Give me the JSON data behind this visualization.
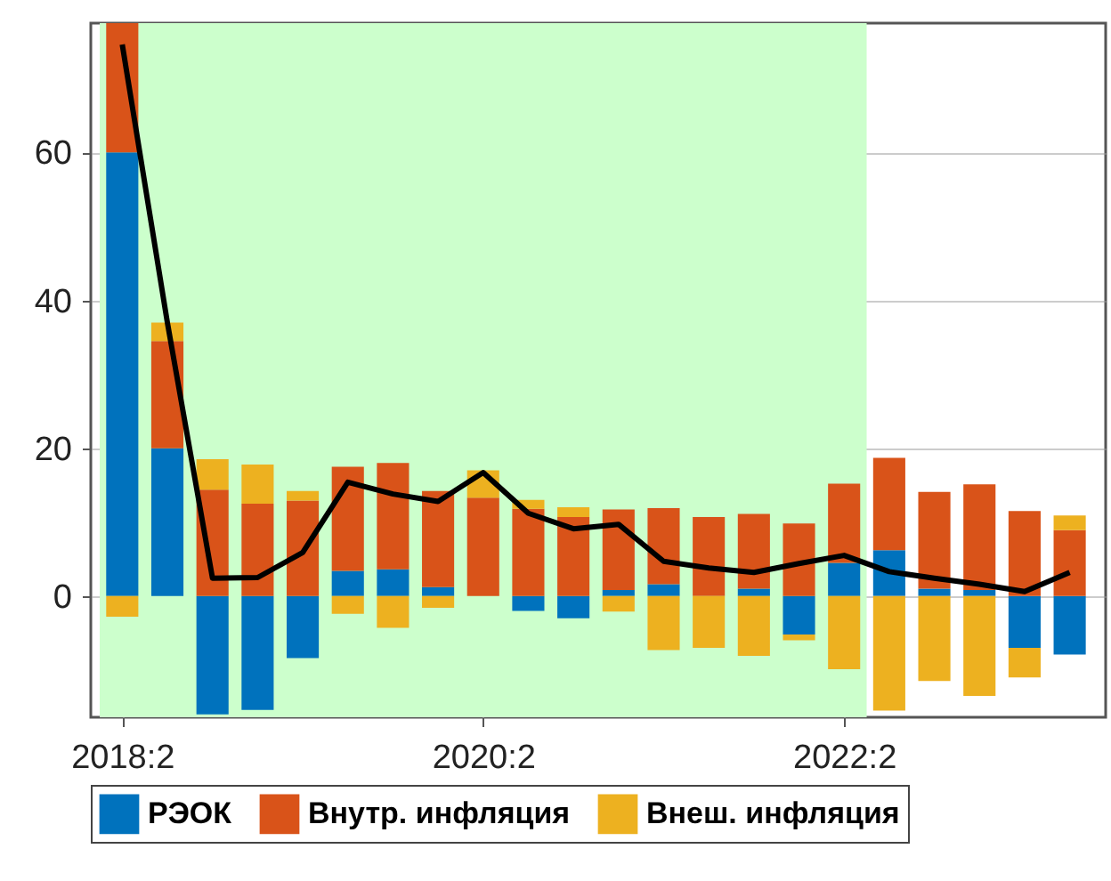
{
  "chart_data": {
    "type": "bar",
    "stacked": true,
    "grid": true,
    "legend": "bottom",
    "categories": [
      "2018:2",
      null,
      null,
      null,
      null,
      null,
      null,
      null,
      "2020:2",
      null,
      null,
      null,
      null,
      null,
      null,
      null,
      "2022:2",
      null,
      null,
      null,
      null,
      null
    ],
    "ylim": [
      -16.4,
      77.5
    ],
    "yticks": [
      0,
      20,
      40,
      60
    ],
    "bands": [
      {
        "axis": "x",
        "from": "2018:2",
        "to": "2022:2",
        "color": "#ccffcc"
      }
    ],
    "series": [
      {
        "name": "РЭОК",
        "color": "#0072bd",
        "values": [
          60,
          20,
          -16,
          -15.4,
          -8.4,
          3.4,
          3.6,
          1.2,
          0,
          -2.0,
          -3.0,
          0.8,
          1.6,
          0,
          1.0,
          -5.2,
          4.5,
          6.2,
          1.0,
          0.8,
          -7.0,
          -7.9
        ]
      },
      {
        "name": "Внутр. инфляция",
        "color": "#d95319",
        "values": [
          17.5,
          14.5,
          14.4,
          12.5,
          12.9,
          14.1,
          14.4,
          13.0,
          13.3,
          11.8,
          10.7,
          10.9,
          10.3,
          10.7,
          10.1,
          9.8,
          10.7,
          12.5,
          13.1,
          14.3,
          11.5,
          8.9
        ]
      },
      {
        "name": "Внеш. инфляция",
        "color": "#edb120",
        "values": [
          -2.8,
          2.5,
          4.1,
          5.3,
          1.3,
          -2.4,
          -4.3,
          -1.6,
          3.7,
          1.2,
          1.3,
          -2.1,
          -7.3,
          -7.0,
          -8.1,
          -0.8,
          -9.9,
          -15.5,
          -11.5,
          -13.5,
          -4.0,
          2.0
        ]
      },
      {
        "type": "line",
        "color": "#000000",
        "values": [
          74.6,
          37,
          2.4,
          2.5,
          5.9,
          15.4,
          13.8,
          12.8,
          16.7,
          11.2,
          9.1,
          9.7,
          4.7,
          3.8,
          3.2,
          4.4,
          5.5,
          3.3,
          2.4,
          1.6,
          0.6,
          3.2
        ]
      }
    ]
  }
}
